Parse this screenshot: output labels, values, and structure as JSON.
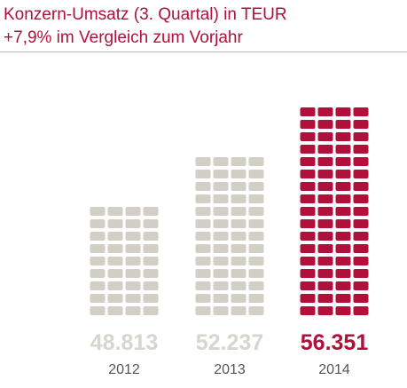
{
  "header": {
    "title": "Konzern-Umsatz (3. Quartal) in TEUR",
    "subtitle": "+7,9% im Vergleich zum Vorjahr"
  },
  "colors": {
    "accent": "#b0103a",
    "bar_gray": "#d2d0c6",
    "label_gray": "#d7d5cd",
    "year_gray": "#555555",
    "rule": "#b9b9b9"
  },
  "chart_data": {
    "type": "bar",
    "title": "Konzern-Umsatz (3. Quartal) in TEUR",
    "subtitle": "+7,9% im Vergleich zum Vorjahr",
    "categories": [
      "2012",
      "2013",
      "2014"
    ],
    "values": [
      48813,
      52237,
      56351
    ],
    "value_labels": [
      "48.813",
      "52.237",
      "56.351"
    ],
    "highlight_index": 2,
    "grid": false,
    "legend": "none"
  }
}
